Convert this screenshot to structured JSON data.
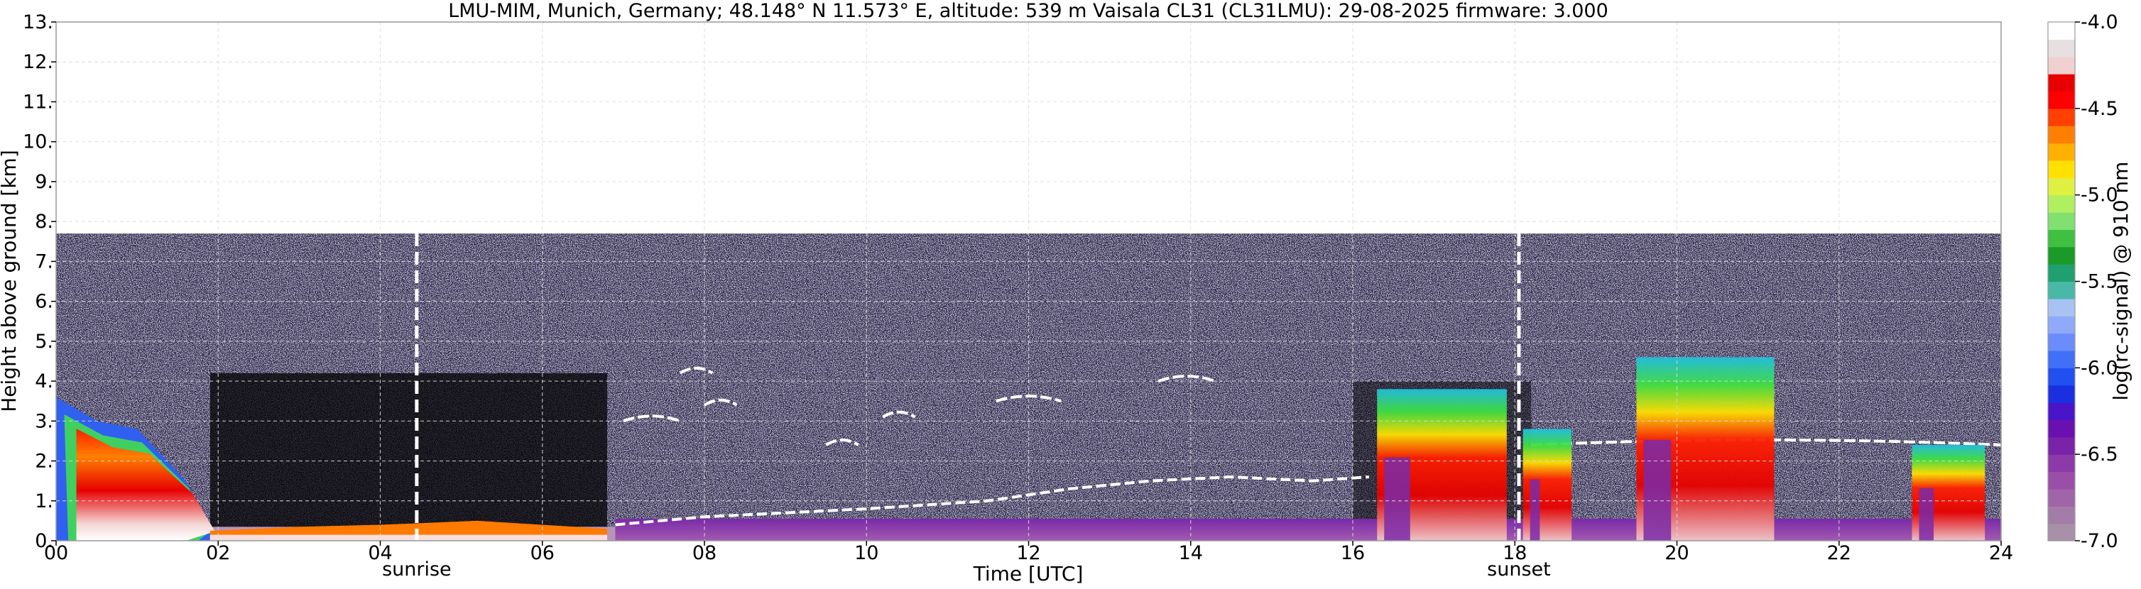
{
  "title": "LMU-MIM, Munich, Germany; 48.148° N 11.573° E, altitude: 539 m    Vaisala CL31 (CL31LMU): 29-08-2025    firmware: 3.000",
  "chart_data": {
    "type": "heatmap",
    "xlabel": "Time [UTC]",
    "ylabel": "Height above ground [km]",
    "colorbar_label": "log(rc-signal) @ 910 nm",
    "xlim": [
      0,
      24
    ],
    "ylim": [
      0,
      13
    ],
    "x_ticks": [
      0,
      2,
      4,
      6,
      8,
      10,
      12,
      14,
      16,
      18,
      20,
      22,
      24
    ],
    "x_tick_labels": [
      "00",
      "02",
      "04",
      "06",
      "08",
      "10",
      "12",
      "14",
      "16",
      "18",
      "20",
      "22",
      "24"
    ],
    "y_ticks": [
      0,
      1,
      2,
      3,
      4,
      5,
      6,
      7,
      8,
      9,
      10,
      11,
      12,
      13
    ],
    "y_tick_labels": [
      "0.",
      "1.",
      "2.",
      "3.",
      "4.",
      "5.",
      "6.",
      "7.",
      "8.",
      "9.",
      "10.",
      "11.",
      "12.",
      "13."
    ],
    "grid": true,
    "colorbar": {
      "range": [
        -7.0,
        -4.0
      ],
      "ticks": [
        -7.0,
        -6.5,
        -6.0,
        -5.5,
        -5.0,
        -4.5,
        -4.0
      ],
      "tick_labels": [
        "-7.0",
        "-6.5",
        "-6.0",
        "-5.5",
        "-5.0",
        "-4.5",
        "-4.0"
      ],
      "colors": [
        "#a890a8",
        "#a47ca8",
        "#a064a8",
        "#9a4ea8",
        "#8c3aa8",
        "#7a22a8",
        "#6a10b0",
        "#4a14c8",
        "#1a30e0",
        "#2050f0",
        "#4070f8",
        "#6a8cfc",
        "#8eaaf8",
        "#a8c2f4",
        "#48b8a8",
        "#20a070",
        "#1a9a28",
        "#40c040",
        "#80e070",
        "#b0f060",
        "#e0f040",
        "#ffe000",
        "#ffb000",
        "#ff8000",
        "#ff4000",
        "#ff0000",
        "#e80000",
        "#f0d0d0",
        "#e8e0e0",
        "#ffffff"
      ]
    },
    "data_top_km": 7.7,
    "annotations": [
      {
        "label": "sunrise",
        "x": 4.45
      },
      {
        "label": "sunset",
        "x": 18.05
      }
    ],
    "features": {
      "morning_residual_layer": [
        {
          "t": 0,
          "h": 3.6
        },
        {
          "t": 0.5,
          "h": 3.0
        },
        {
          "t": 1.0,
          "h": 2.8
        },
        {
          "t": 1.6,
          "h": 1.5
        },
        {
          "t": 1.9,
          "h": 0.3
        }
      ],
      "mixing_layer_top": [
        {
          "t": 6.9,
          "h": 0.4
        },
        {
          "t": 8.0,
          "h": 0.6
        },
        {
          "t": 9.0,
          "h": 0.7
        },
        {
          "t": 10.0,
          "h": 0.8
        },
        {
          "t": 11.5,
          "h": 1.0
        },
        {
          "t": 12.5,
          "h": 1.3
        },
        {
          "t": 13.5,
          "h": 1.5
        },
        {
          "t": 14.5,
          "h": 1.6
        },
        {
          "t": 15.5,
          "h": 1.5
        },
        {
          "t": 16.2,
          "h": 1.6
        }
      ],
      "cloud_segments": [
        {
          "t0": 7.0,
          "t1": 7.7,
          "h": 3.0
        },
        {
          "t0": 7.7,
          "t1": 8.1,
          "h": 4.2
        },
        {
          "t0": 8.0,
          "t1": 8.4,
          "h": 3.4
        },
        {
          "t0": 9.5,
          "t1": 9.9,
          "h": 2.4
        },
        {
          "t0": 10.2,
          "t1": 10.6,
          "h": 3.1
        },
        {
          "t0": 11.6,
          "t1": 12.4,
          "h": 3.5
        },
        {
          "t0": 13.6,
          "t1": 14.3,
          "h": 4.0
        },
        {
          "t0": 18.2,
          "t1": 24.0,
          "h": 2.4
        }
      ],
      "afternoon_convection": [
        {
          "t0": 16.3,
          "t1": 17.9,
          "top": 3.8
        },
        {
          "t0": 18.1,
          "t1": 18.7,
          "top": 2.8
        },
        {
          "t0": 19.5,
          "t1": 21.2,
          "top": 4.6
        },
        {
          "t0": 22.9,
          "t1": 23.8,
          "top": 2.4
        }
      ]
    }
  }
}
